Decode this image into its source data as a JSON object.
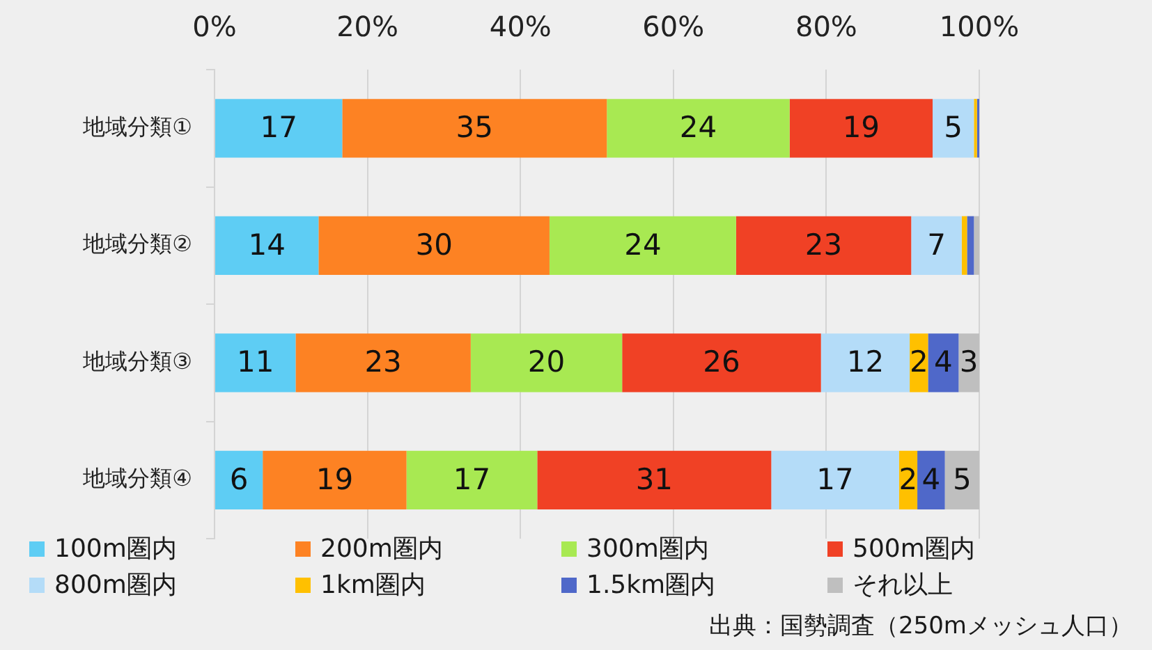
{
  "chart_data": {
    "type": "bar",
    "orientation": "horizontal",
    "stacked": true,
    "categories": [
      "地域分類①",
      "地域分類②",
      "地域分類③",
      "地域分類④"
    ],
    "series": [
      {
        "name": "100m圏内",
        "color": "#5ecdf4",
        "values": [
          16.7,
          13.6,
          10.6,
          6.3
        ],
        "value_labels": [
          "17",
          "14",
          "11",
          "6"
        ]
      },
      {
        "name": "200m圏内",
        "color": "#fd8223",
        "values": [
          34.6,
          30.2,
          22.9,
          18.8
        ],
        "value_labels": [
          "35",
          "30",
          "23",
          "19"
        ]
      },
      {
        "name": "300m圏内",
        "color": "#a8e952",
        "values": [
          23.9,
          24.4,
          19.8,
          17.1
        ],
        "value_labels": [
          "24",
          "24",
          "20",
          "17"
        ]
      },
      {
        "name": "500m圏内",
        "color": "#f04125",
        "values": [
          18.7,
          22.9,
          26.0,
          30.6
        ],
        "value_labels": [
          "19",
          "23",
          "26",
          "31"
        ]
      },
      {
        "name": "800m圏内",
        "color": "#b4dcf8",
        "values": [
          5.4,
          6.6,
          11.6,
          16.7
        ],
        "value_labels": [
          "5",
          "7",
          "12",
          "17"
        ]
      },
      {
        "name": "1km圏内",
        "color": "#ffc000",
        "values": [
          0.4,
          0.7,
          2.4,
          2.4
        ],
        "value_labels": [
          null,
          null,
          "2",
          "2"
        ]
      },
      {
        "name": "1.5km圏内",
        "color": "#4f68c9",
        "values": [
          0.3,
          0.9,
          4.0,
          3.6
        ],
        "value_labels": [
          null,
          null,
          "4",
          "4"
        ]
      },
      {
        "name": "それ以上",
        "color": "#bfbfbf",
        "values": [
          0,
          0.7,
          2.7,
          4.5
        ],
        "value_labels": [
          null,
          null,
          "3",
          "5"
        ]
      }
    ],
    "xlim": [
      0,
      100
    ],
    "xticks": [
      {
        "value": 0,
        "label": "0%"
      },
      {
        "value": 20,
        "label": "20%"
      },
      {
        "value": 40,
        "label": "40%"
      },
      {
        "value": 60,
        "label": "60%"
      },
      {
        "value": 80,
        "label": "80%"
      },
      {
        "value": 100,
        "label": "100%"
      }
    ],
    "grid": "x",
    "legend": "bottom",
    "annotations": [
      "出典：国勢調査（250mメッシュ人口）"
    ]
  }
}
